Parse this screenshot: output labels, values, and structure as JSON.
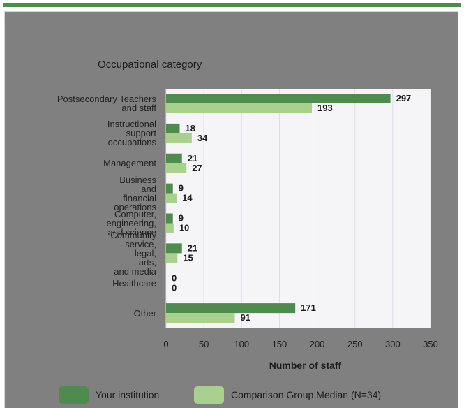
{
  "colors": {
    "your_institution": "#4e8c4e",
    "comparison": "#a9d18e",
    "panel_bg": "#808080",
    "plot_bg": "#f5f5f7",
    "grid": "#ddddee"
  },
  "chart_data": {
    "type": "bar",
    "orientation": "horizontal",
    "title": "Occupational category",
    "xlabel": "Number of staff",
    "ylabel": "",
    "xlim": [
      0,
      350
    ],
    "xticks": [
      0,
      50,
      100,
      150,
      200,
      250,
      300,
      350
    ],
    "grid": true,
    "legend_position": "bottom",
    "categories": [
      "Postsecondary Teachers\nand staff",
      "Instructional\nsupport\noccupations",
      "Management",
      "Business\nand\nfinancial\noperations",
      "Computer,\nengineering,\nand science",
      "Community\nservice,\nlegal,\narts,\nand media",
      "Healthcare",
      "Other"
    ],
    "series": [
      {
        "name": "Your institution",
        "values": [
          297,
          18,
          21,
          9,
          9,
          21,
          0,
          171
        ]
      },
      {
        "name": "Comparison Group Median (N=34)",
        "values": [
          193,
          34,
          27,
          14,
          10,
          15,
          0,
          91
        ]
      }
    ]
  }
}
